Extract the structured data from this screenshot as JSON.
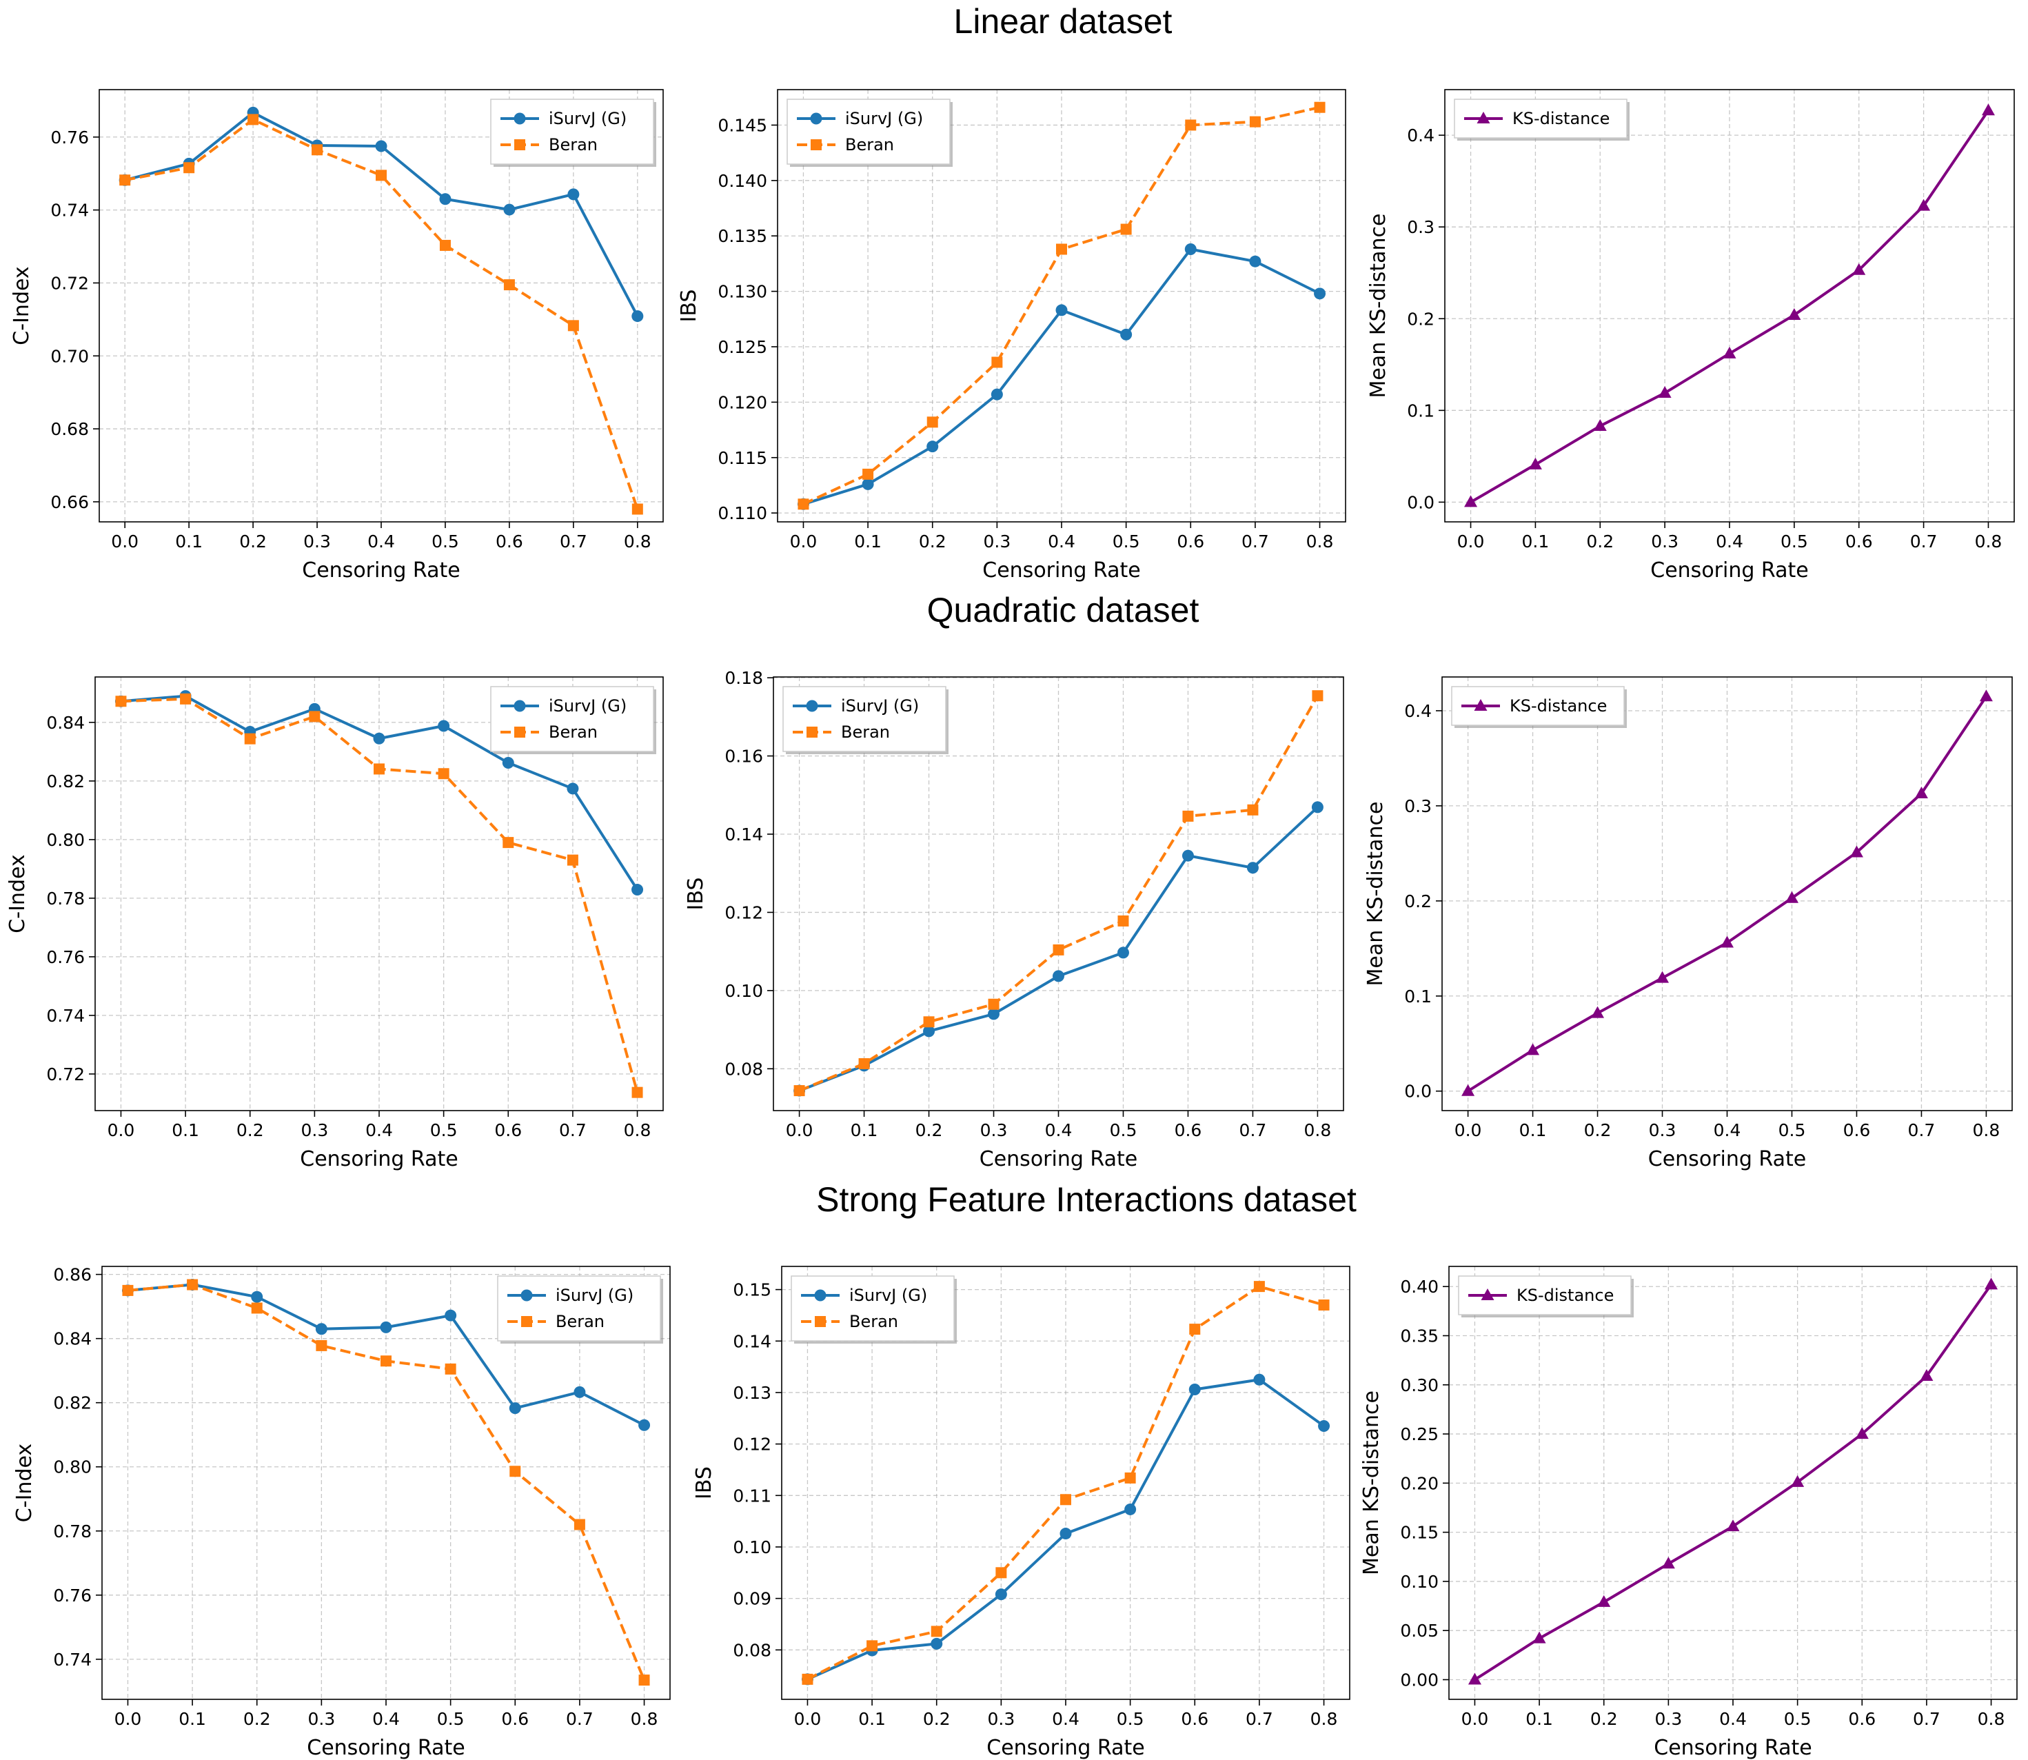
{
  "sections": [
    {
      "title": "Linear dataset"
    },
    {
      "title": "Quadratic dataset"
    },
    {
      "title": "Strong Feature Interactions dataset"
    }
  ],
  "colors": {
    "isurvj": "#1f77b4",
    "beran": "#ff7f0e",
    "ks": "#800080",
    "grid": "#b0b0b0"
  },
  "chart_data": [
    {
      "id": "linear-cindex",
      "type": "line",
      "section": 0,
      "xlabel": "Censoring Rate",
      "ylabel": "C-Index",
      "x": [
        0.0,
        0.1,
        0.2,
        0.3,
        0.4,
        0.5,
        0.6,
        0.7,
        0.8
      ],
      "xticks": [
        "0.0",
        "0.1",
        "0.2",
        "0.3",
        "0.4",
        "0.5",
        "0.6",
        "0.7",
        "0.8"
      ],
      "ylim": [
        0.6545,
        0.773
      ],
      "yticks": [
        "0.66",
        "0.68",
        "0.70",
        "0.72",
        "0.74",
        "0.76"
      ],
      "legend": "top-right",
      "series": [
        {
          "name": "iSurvJ (G)",
          "marker": "circle",
          "style": "solid",
          "color": "#1f77b4",
          "values": [
            0.7482,
            0.7527,
            0.7667,
            0.7577,
            0.7575,
            0.743,
            0.7401,
            0.7443,
            0.7109
          ]
        },
        {
          "name": "Beran",
          "marker": "square",
          "style": "dashed",
          "color": "#ff7f0e",
          "values": [
            0.7482,
            0.7516,
            0.7648,
            0.7565,
            0.7495,
            0.7303,
            0.7195,
            0.7083,
            0.658
          ]
        }
      ]
    },
    {
      "id": "linear-ibs",
      "type": "line",
      "section": 0,
      "xlabel": "Censoring Rate",
      "ylabel": "IBS",
      "x": [
        0.0,
        0.1,
        0.2,
        0.3,
        0.4,
        0.5,
        0.6,
        0.7,
        0.8
      ],
      "xticks": [
        "0.0",
        "0.1",
        "0.2",
        "0.3",
        "0.4",
        "0.5",
        "0.6",
        "0.7",
        "0.8"
      ],
      "ylim": [
        0.1092,
        0.1482
      ],
      "yticks": [
        "0.110",
        "0.115",
        "0.120",
        "0.125",
        "0.130",
        "0.135",
        "0.140",
        "0.145"
      ],
      "legend": "top-left",
      "series": [
        {
          "name": "iSurvJ (G)",
          "marker": "circle",
          "style": "solid",
          "color": "#1f77b4",
          "values": [
            0.1108,
            0.1126,
            0.116,
            0.1207,
            0.1283,
            0.1261,
            0.1338,
            0.1327,
            0.1298
          ]
        },
        {
          "name": "Beran",
          "marker": "square",
          "style": "dashed",
          "color": "#ff7f0e",
          "values": [
            0.1108,
            0.1135,
            0.1182,
            0.1236,
            0.1338,
            0.1356,
            0.145,
            0.1453,
            0.1466
          ]
        }
      ]
    },
    {
      "id": "linear-ks",
      "type": "line",
      "section": 0,
      "xlabel": "Censoring Rate",
      "ylabel": "Mean KS-distance",
      "x": [
        0.0,
        0.1,
        0.2,
        0.3,
        0.4,
        0.5,
        0.6,
        0.7,
        0.8
      ],
      "xticks": [
        "0.0",
        "0.1",
        "0.2",
        "0.3",
        "0.4",
        "0.5",
        "0.6",
        "0.7",
        "0.8"
      ],
      "ylim": [
        -0.0215,
        0.4497
      ],
      "yticks": [
        "0.0",
        "0.1",
        "0.2",
        "0.3",
        "0.4"
      ],
      "legend": "top-left",
      "series": [
        {
          "name": "KS-distance",
          "marker": "triangle",
          "style": "solid",
          "color": "#800080",
          "values": [
            0.0,
            0.041,
            0.083,
            0.119,
            0.162,
            0.204,
            0.253,
            0.323,
            0.427
          ]
        }
      ]
    },
    {
      "id": "quadratic-cindex",
      "type": "line",
      "section": 1,
      "xlabel": "Censoring Rate",
      "ylabel": "C-Index",
      "x": [
        0.0,
        0.1,
        0.2,
        0.3,
        0.4,
        0.5,
        0.6,
        0.7,
        0.8
      ],
      "xticks": [
        "0.0",
        "0.1",
        "0.2",
        "0.3",
        "0.4",
        "0.5",
        "0.6",
        "0.7",
        "0.8"
      ],
      "ylim": [
        0.7075,
        0.8555
      ],
      "yticks": [
        "0.72",
        "0.74",
        "0.76",
        "0.78",
        "0.80",
        "0.82",
        "0.84"
      ],
      "legend": "top-right",
      "series": [
        {
          "name": "iSurvJ (G)",
          "marker": "circle",
          "style": "solid",
          "color": "#1f77b4",
          "values": [
            0.8472,
            0.849,
            0.8368,
            0.8446,
            0.8345,
            0.8388,
            0.8262,
            0.8174,
            0.7829
          ]
        },
        {
          "name": "Beran",
          "marker": "square",
          "style": "dashed",
          "color": "#ff7f0e",
          "values": [
            0.8472,
            0.848,
            0.8344,
            0.842,
            0.8241,
            0.8225,
            0.799,
            0.793,
            0.7137
          ]
        }
      ]
    },
    {
      "id": "quadratic-ibs",
      "type": "line",
      "section": 1,
      "xlabel": "Censoring Rate",
      "ylabel": "IBS",
      "x": [
        0.0,
        0.1,
        0.2,
        0.3,
        0.4,
        0.5,
        0.6,
        0.7,
        0.8
      ],
      "xticks": [
        "0.0",
        "0.1",
        "0.2",
        "0.3",
        "0.4",
        "0.5",
        "0.6",
        "0.7",
        "0.8"
      ],
      "ylim": [
        0.0693,
        0.1802
      ],
      "yticks": [
        "0.08",
        "0.10",
        "0.12",
        "0.14",
        "0.16",
        "0.18"
      ],
      "legend": "top-left",
      "series": [
        {
          "name": "iSurvJ (G)",
          "marker": "circle",
          "style": "solid",
          "color": "#1f77b4",
          "values": [
            0.0744,
            0.0808,
            0.0896,
            0.094,
            0.1037,
            0.1097,
            0.1345,
            0.1314,
            0.1469
          ]
        },
        {
          "name": "Beran",
          "marker": "square",
          "style": "dashed",
          "color": "#ff7f0e",
          "values": [
            0.0744,
            0.0813,
            0.092,
            0.0965,
            0.1104,
            0.1178,
            0.1446,
            0.1462,
            0.1754
          ]
        }
      ]
    },
    {
      "id": "quadratic-ks",
      "type": "line",
      "section": 1,
      "xlabel": "Censoring Rate",
      "ylabel": "Mean KS-distance",
      "x": [
        0.0,
        0.1,
        0.2,
        0.3,
        0.4,
        0.5,
        0.6,
        0.7,
        0.8
      ],
      "xticks": [
        "0.0",
        "0.1",
        "0.2",
        "0.3",
        "0.4",
        "0.5",
        "0.6",
        "0.7",
        "0.8"
      ],
      "ylim": [
        -0.0205,
        0.4355
      ],
      "yticks": [
        "0.0",
        "0.1",
        "0.2",
        "0.3",
        "0.4"
      ],
      "legend": "top-left",
      "series": [
        {
          "name": "KS-distance",
          "marker": "triangle",
          "style": "solid",
          "color": "#800080",
          "values": [
            0.0,
            0.043,
            0.082,
            0.119,
            0.156,
            0.203,
            0.251,
            0.313,
            0.415
          ]
        }
      ]
    },
    {
      "id": "strong-cindex",
      "type": "line",
      "section": 2,
      "xlabel": "Censoring Rate",
      "ylabel": "C-Index",
      "x": [
        0.0,
        0.1,
        0.2,
        0.3,
        0.4,
        0.5,
        0.6,
        0.7,
        0.8
      ],
      "xticks": [
        "0.0",
        "0.1",
        "0.2",
        "0.3",
        "0.4",
        "0.5",
        "0.6",
        "0.7",
        "0.8"
      ],
      "ylim": [
        0.7275,
        0.8625
      ],
      "yticks": [
        "0.74",
        "0.76",
        "0.78",
        "0.80",
        "0.82",
        "0.84",
        "0.86"
      ],
      "legend": "top-right",
      "series": [
        {
          "name": "iSurvJ (G)",
          "marker": "circle",
          "style": "solid",
          "color": "#1f77b4",
          "values": [
            0.855,
            0.8568,
            0.853,
            0.843,
            0.8435,
            0.8472,
            0.8183,
            0.8233,
            0.813
          ]
        },
        {
          "name": "Beran",
          "marker": "square",
          "style": "dashed",
          "color": "#ff7f0e",
          "values": [
            0.855,
            0.8568,
            0.8495,
            0.8378,
            0.833,
            0.8305,
            0.7986,
            0.782,
            0.7335
          ]
        }
      ]
    },
    {
      "id": "strong-ibs",
      "type": "line",
      "section": 2,
      "xlabel": "Censoring Rate",
      "ylabel": "IBS",
      "x": [
        0.0,
        0.1,
        0.2,
        0.3,
        0.4,
        0.5,
        0.6,
        0.7,
        0.8
      ],
      "xticks": [
        "0.0",
        "0.1",
        "0.2",
        "0.3",
        "0.4",
        "0.5",
        "0.6",
        "0.7",
        "0.8"
      ],
      "ylim": [
        0.0704,
        0.1545
      ],
      "yticks": [
        "0.08",
        "0.09",
        "0.10",
        "0.11",
        "0.12",
        "0.13",
        "0.14",
        "0.15"
      ],
      "legend": "top-left",
      "series": [
        {
          "name": "iSurvJ (G)",
          "marker": "circle",
          "style": "solid",
          "color": "#1f77b4",
          "values": [
            0.0743,
            0.0799,
            0.0812,
            0.0908,
            0.1026,
            0.1073,
            0.1306,
            0.1325,
            0.1235
          ]
        },
        {
          "name": "Beran",
          "marker": "square",
          "style": "dashed",
          "color": "#ff7f0e",
          "values": [
            0.0743,
            0.0808,
            0.0836,
            0.095,
            0.1092,
            0.1134,
            0.1423,
            0.1506,
            0.147
          ]
        }
      ]
    },
    {
      "id": "strong-ks",
      "type": "line",
      "section": 2,
      "xlabel": "Censoring Rate",
      "ylabel": "Mean KS-distance",
      "x": [
        0.0,
        0.1,
        0.2,
        0.3,
        0.4,
        0.5,
        0.6,
        0.7,
        0.8
      ],
      "xticks": [
        "0.0",
        "0.1",
        "0.2",
        "0.3",
        "0.4",
        "0.5",
        "0.6",
        "0.7",
        "0.8"
      ],
      "ylim": [
        -0.02,
        0.4205
      ],
      "yticks": [
        "0.00",
        "0.05",
        "0.10",
        "0.15",
        "0.20",
        "0.25",
        "0.30",
        "0.35",
        "0.40"
      ],
      "legend": "top-left",
      "series": [
        {
          "name": "KS-distance",
          "marker": "triangle",
          "style": "solid",
          "color": "#800080",
          "values": [
            0.0,
            0.042,
            0.079,
            0.118,
            0.156,
            0.201,
            0.25,
            0.309,
            0.402
          ]
        }
      ]
    }
  ]
}
